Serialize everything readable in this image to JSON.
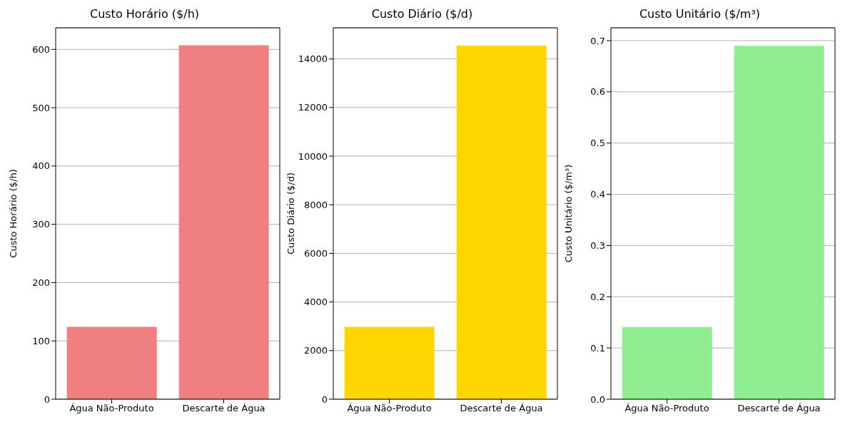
{
  "chart_data": [
    {
      "type": "bar",
      "title": "Custo Horário ($/h)",
      "ylabel": "Custo Horário ($/h)",
      "categories": [
        "Água Não-Produto",
        "Descarte de Água"
      ],
      "values": [
        124,
        607
      ],
      "color": "#f08080",
      "ylim": [
        0,
        637
      ],
      "yticks": [
        0,
        100,
        200,
        300,
        400,
        500,
        600
      ],
      "grid": "y"
    },
    {
      "type": "bar",
      "title": "Custo Diário ($/d)",
      "ylabel": "Custo Diário ($/d)",
      "categories": [
        "Água Não-Produto",
        "Descarte de Água"
      ],
      "values": [
        2980,
        14550
      ],
      "color": "#ffd700",
      "ylim": [
        0,
        15280
      ],
      "yticks": [
        0,
        2000,
        4000,
        6000,
        8000,
        10000,
        12000,
        14000
      ],
      "grid": "y"
    },
    {
      "type": "bar",
      "title": "Custo Unitário ($/m³)",
      "ylabel": "Custo Unitário ($/m³)",
      "categories": [
        "Água Não-Produto",
        "Descarte de Água"
      ],
      "values": [
        0.141,
        0.69
      ],
      "color": "#90ee90",
      "ylim": [
        0,
        0.725
      ],
      "yticks": [
        {
          "value": 0,
          "label": "0.0"
        },
        {
          "value": 0.1,
          "label": "0.1"
        },
        {
          "value": 0.2,
          "label": "0.2"
        },
        {
          "value": 0.3,
          "label": "0.3"
        },
        {
          "value": 0.4,
          "label": "0.4"
        },
        {
          "value": 0.5,
          "label": "0.5"
        },
        {
          "value": 0.6,
          "label": "0.6"
        },
        {
          "value": 0.7,
          "label": "0.7"
        }
      ],
      "grid": "y"
    }
  ]
}
